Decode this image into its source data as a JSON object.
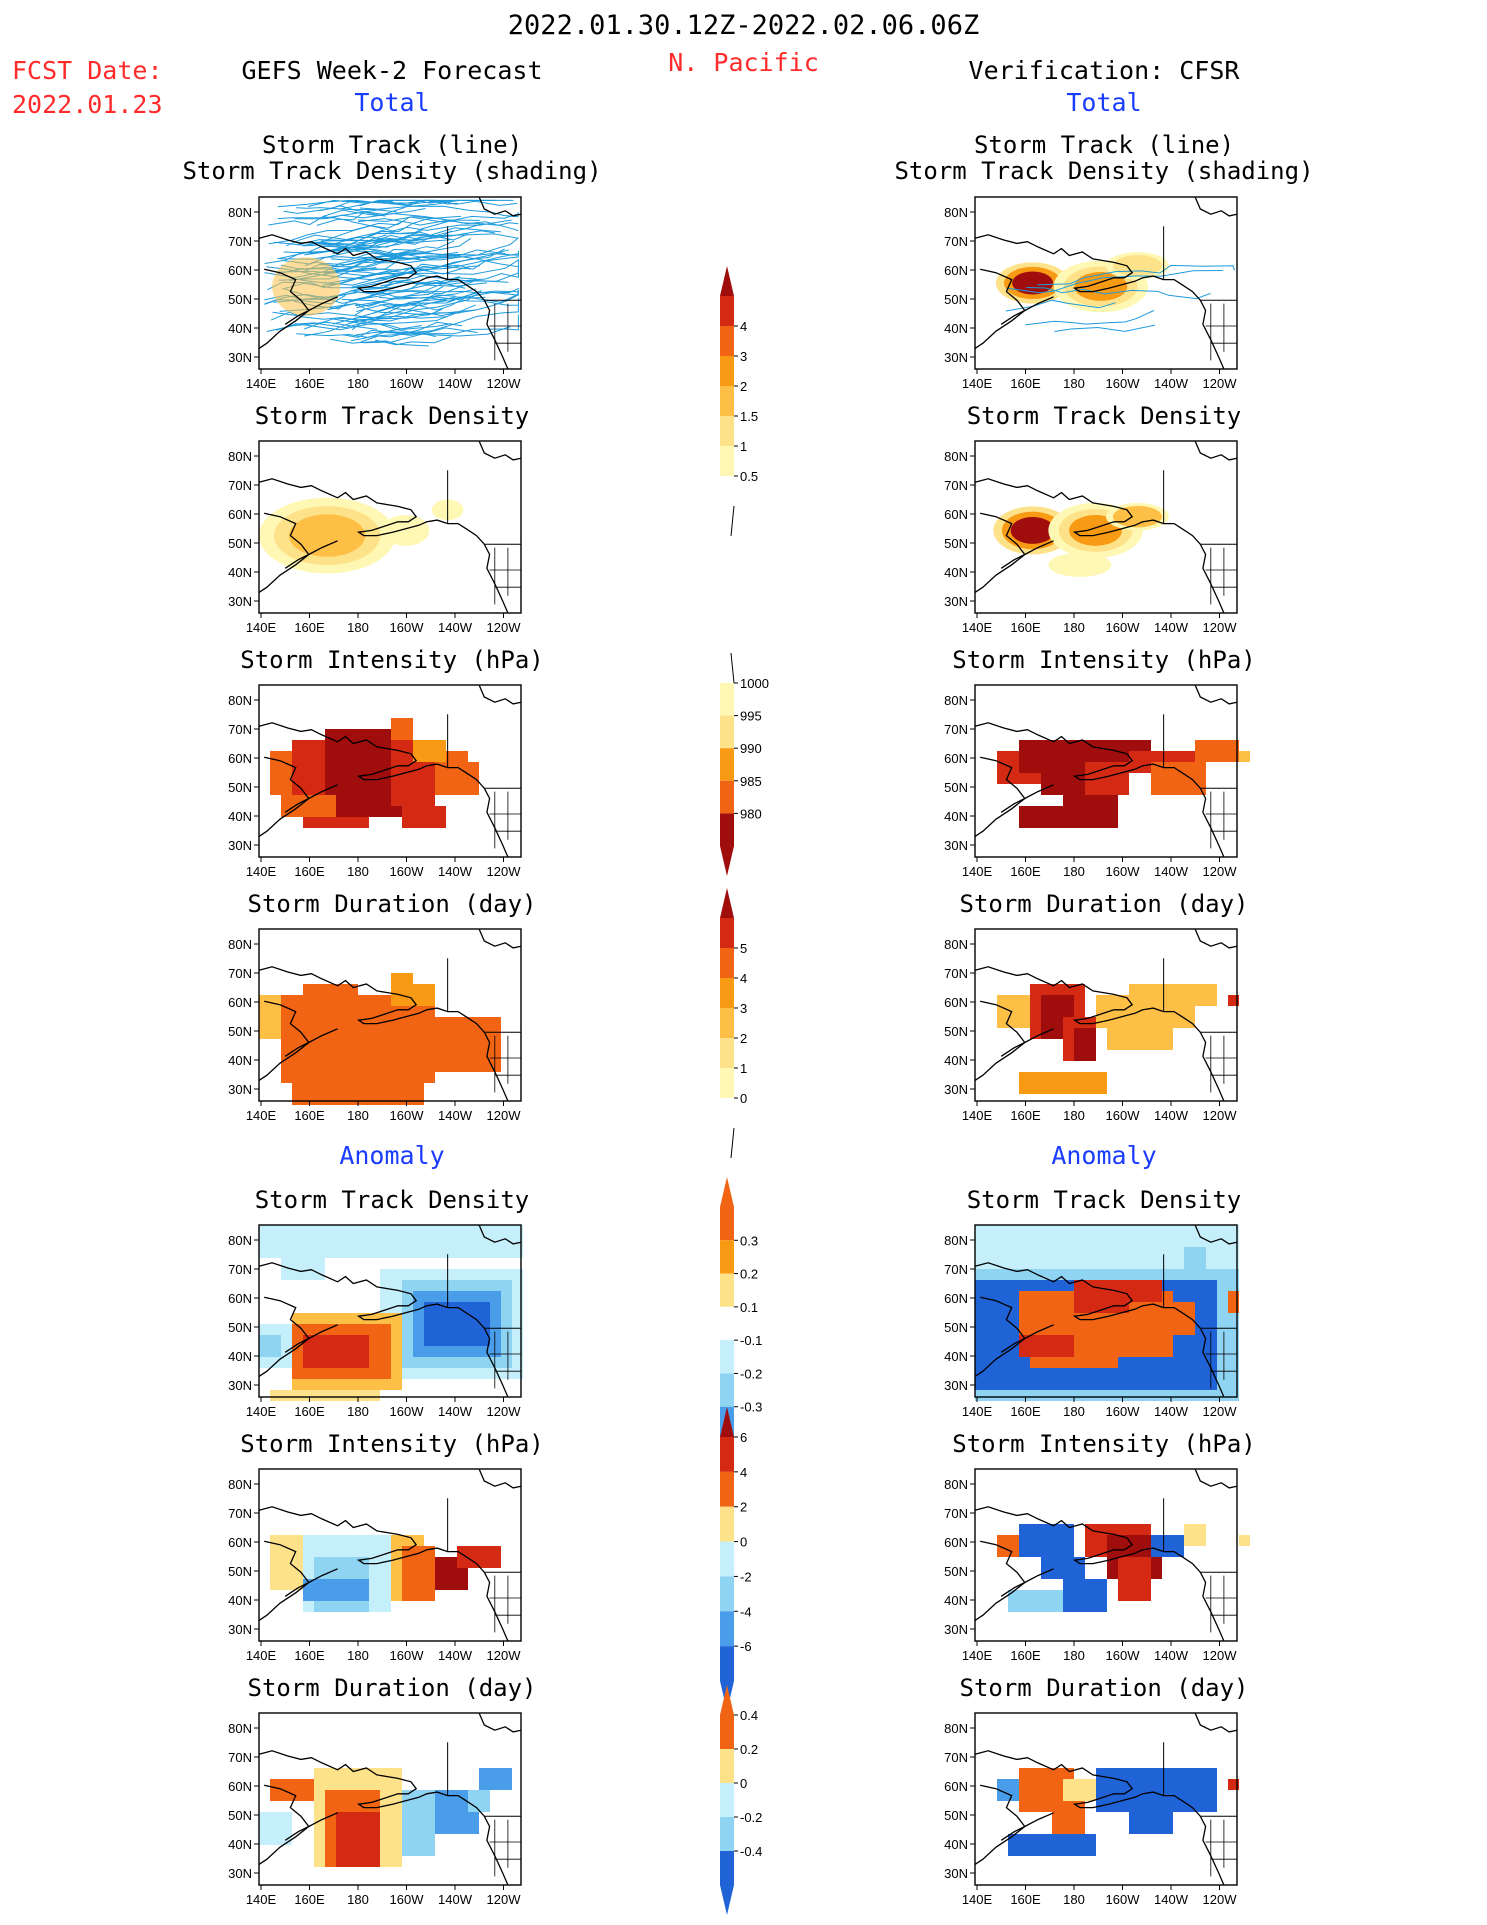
{
  "header": {
    "period": "2022.01.30.12Z-2022.02.06.06Z",
    "region": "N. Pacific",
    "fcst_label": "FCST Date:",
    "fcst_date": "2022.01.23",
    "left_title": "GEFS Week-2 Forecast",
    "right_title": "Verification: CFSR",
    "total_label": "Total",
    "anomaly_label": "Anomaly"
  },
  "panel_titles": {
    "track_line": "Storm Track (line)",
    "track_shading": "Storm Track Density (shading)",
    "density": "Storm Track Density",
    "intensity": "Storm Intensity (hPa)",
    "duration": "Storm Duration (day)"
  },
  "axes": {
    "lat_labels": [
      "80N",
      "70N",
      "60N",
      "50N",
      "40N",
      "30N"
    ],
    "lon_labels": [
      "140E",
      "160E",
      "180",
      "160W",
      "140W",
      "120W"
    ]
  },
  "colorbars": [
    {
      "name": "density-total",
      "labels": [
        "0.5",
        "1",
        "1.5",
        "2",
        "3",
        "4"
      ]
    },
    {
      "name": "intensity-total",
      "labels": [
        "1000",
        "995",
        "990",
        "985",
        "980"
      ]
    },
    {
      "name": "duration-total",
      "labels": [
        "0",
        "1",
        "2",
        "3",
        "4",
        "5"
      ]
    },
    {
      "name": "density-anomaly",
      "labels": [
        "0.3",
        "0.2",
        "0.1",
        "-0.1",
        "-0.2",
        "-0.3"
      ]
    },
    {
      "name": "intensity-anomaly",
      "labels": [
        "6",
        "4",
        "2",
        "0",
        "-2",
        "-4",
        "-6"
      ]
    },
    {
      "name": "duration-anomaly",
      "labels": [
        "0.4",
        "0.2",
        "0",
        "-0.2",
        "-0.4"
      ]
    }
  ],
  "colors": {
    "red_text": "#ff2a2a",
    "blue_text": "#1a3cff",
    "track_line": "#1e9bdc",
    "warm_scale": [
      "#fff8b5",
      "#fde28a",
      "#fdbf45",
      "#f99a14",
      "#f06414",
      "#d42a14",
      "#a00d0d"
    ],
    "cool_scale": [
      "#c5f0fb",
      "#8fd4f3",
      "#4a9ee9",
      "#1f63d6"
    ]
  }
}
